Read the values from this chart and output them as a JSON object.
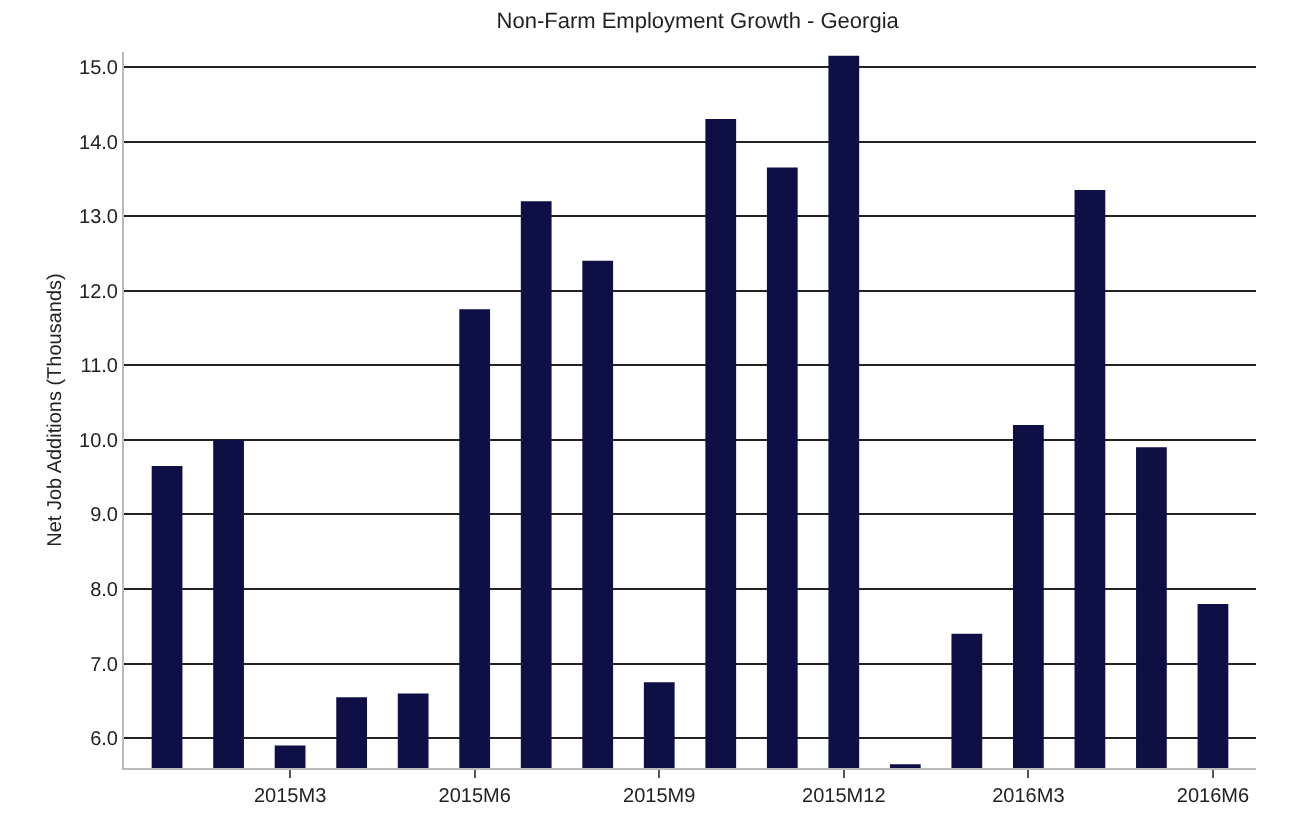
{
  "chart_data": {
    "type": "bar",
    "title": "Non-Farm Employment Growth - Georgia",
    "ylabel": "Net Job Additions (Thousands)",
    "categories": [
      null,
      null,
      "2015M3",
      null,
      null,
      "2015M6",
      null,
      null,
      "2015M9",
      null,
      null,
      "2015M12",
      null,
      null,
      "2016M3",
      null,
      null,
      "2016M6"
    ],
    "values": [
      9.65,
      10.0,
      5.9,
      6.55,
      6.6,
      11.75,
      13.2,
      12.4,
      6.75,
      14.3,
      13.65,
      15.15,
      5.65,
      7.4,
      10.2,
      13.35,
      9.9,
      7.8
    ],
    "color": "#0e0f45",
    "ylim": [
      5.6,
      15.2
    ],
    "yticks": [
      {
        "value": 6,
        "label": "6.0"
      },
      {
        "value": 7,
        "label": "7.0"
      },
      {
        "value": 8,
        "label": "8.0"
      },
      {
        "value": 9,
        "label": "9.0"
      },
      {
        "value": 10,
        "label": "10.0"
      },
      {
        "value": 11,
        "label": "11.0"
      },
      {
        "value": 12,
        "label": "12.0"
      },
      {
        "value": 13,
        "label": "13.0"
      },
      {
        "value": 14,
        "label": "14.0"
      },
      {
        "value": 15,
        "label": "15.0"
      }
    ],
    "grid": "y"
  }
}
